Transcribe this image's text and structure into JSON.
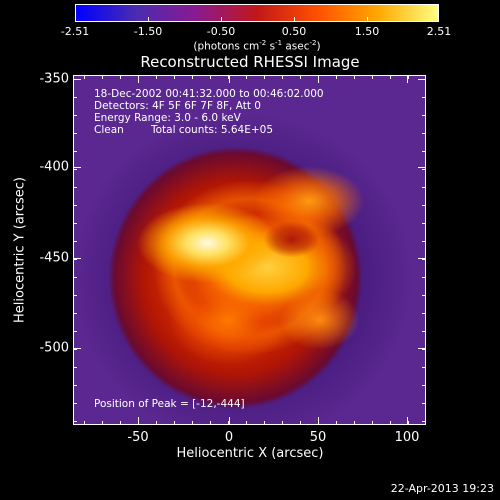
{
  "colorbar": {
    "tick_labels": [
      "-2.51",
      "-1.50",
      "-0.50",
      "0.50",
      "1.50",
      "2.51"
    ],
    "unit_prefix": "(photons cm",
    "unit_exp1": "-2",
    "unit_mid1": " s",
    "unit_exp2": "-1",
    "unit_mid2": " asec",
    "unit_exp3": "-2",
    "unit_suffix": ")",
    "range": [
      -2.51,
      2.51
    ],
    "colors": [
      "#0000ff",
      "#4a2cb0",
      "#8a1a90",
      "#c01818",
      "#ff5000",
      "#ffa800",
      "#ffff80"
    ]
  },
  "title": "Reconstructed RHESSI Image",
  "info": {
    "time_range": "18-Dec-2002 00:41:32.000 to 00:46:02.000",
    "detectors": "Detectors: 4F 5F 6F 7F 8F, Att 0",
    "energy": "Energy Range: 3.0 - 6.0 keV",
    "clean_label": "Clean",
    "counts": "Total counts: 5.64E+05",
    "peak": "Position of Peak = [-12,-444]"
  },
  "axes": {
    "y_ticks": [
      "-350",
      "-400",
      "-450",
      "-500"
    ],
    "x_ticks": [
      "-50",
      "0",
      "50",
      "100"
    ],
    "xlabel": "Heliocentric X (arcsec)",
    "ylabel": "Heliocentric Y (arcsec)"
  },
  "timestamp": "22-Apr-2013 19:23"
}
